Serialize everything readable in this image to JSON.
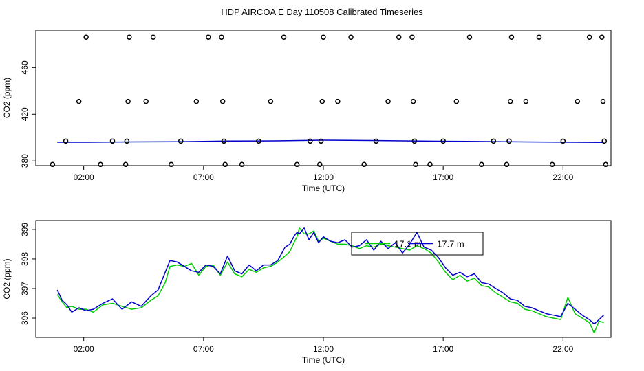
{
  "figure": {
    "title": "HDP AIRCOA E  Day 110508  Calibrated Timeseries"
  },
  "chart_data": [
    {
      "type": "scatter",
      "xlabel": "Time (UTC)",
      "ylabel": "CO2 (ppm)",
      "x_ticks": [
        {
          "label": "02:00",
          "value": 2
        },
        {
          "label": "07:00",
          "value": 7
        },
        {
          "label": "12:00",
          "value": 12
        },
        {
          "label": "17:00",
          "value": 17
        },
        {
          "label": "22:00",
          "value": 22
        }
      ],
      "y_ticks": [
        {
          "label": "380",
          "value": 380
        },
        {
          "label": "420",
          "value": 420
        },
        {
          "label": "460",
          "value": 460
        }
      ],
      "xlim": [
        0,
        24
      ],
      "ylim": [
        376,
        492
      ],
      "grid": false,
      "points": {
        "color": "#000000",
        "x": [
          0.7,
          1.25,
          1.8,
          2.1,
          2.7,
          3.2,
          3.75,
          3.8,
          3.85,
          3.9,
          4.6,
          4.9,
          5.65,
          6.05,
          6.7,
          7.2,
          7.75,
          7.8,
          7.85,
          7.9,
          8.6,
          9.3,
          9.8,
          10.35,
          10.9,
          11.45,
          11.85,
          11.9,
          11.95,
          12.0,
          12.6,
          13.15,
          13.7,
          14.2,
          14.7,
          15.15,
          15.7,
          15.75,
          15.8,
          15.85,
          16.45,
          17.0,
          17.55,
          18.1,
          18.6,
          19.1,
          19.65,
          19.75,
          19.8,
          19.85,
          20.45,
          21.0,
          21.55,
          22.0,
          22.6,
          23.1,
          23.62,
          23.67,
          23.72,
          23.78
        ],
        "y": [
          377,
          397,
          431,
          486,
          377,
          397,
          377,
          397,
          431,
          486,
          431,
          486,
          377,
          397,
          431,
          486,
          486,
          431,
          397,
          377,
          377,
          397,
          431,
          486,
          377,
          397,
          377,
          397,
          431,
          486,
          431,
          486,
          377,
          397,
          431,
          486,
          486,
          431,
          397,
          377,
          377,
          397,
          431,
          486,
          377,
          397,
          377,
          397,
          431,
          486,
          431,
          486,
          377,
          397,
          431,
          486,
          486,
          431,
          397,
          377
        ]
      },
      "series": [
        {
          "color": "#0000cc",
          "x": [
            0.9,
            2,
            4,
            6,
            8,
            10,
            12,
            14,
            16,
            18,
            20,
            22,
            23.7
          ],
          "y": [
            396.0,
            396.0,
            396.3,
            396.5,
            397.0,
            397.2,
            397.8,
            397.5,
            397.0,
            396.8,
            396.4,
            396.1,
            395.9
          ]
        }
      ]
    },
    {
      "type": "line",
      "xlabel": "Time (UTC)",
      "ylabel": "CO2 (ppm)",
      "x_ticks": [
        {
          "label": "02:00",
          "value": 2
        },
        {
          "label": "07:00",
          "value": 7
        },
        {
          "label": "12:00",
          "value": 12
        },
        {
          "label": "17:00",
          "value": 17
        },
        {
          "label": "22:00",
          "value": 22
        }
      ],
      "y_ticks": [
        {
          "label": "396",
          "value": 396
        },
        {
          "label": "397",
          "value": 397
        },
        {
          "label": "398",
          "value": 398
        },
        {
          "label": "399",
          "value": 399
        }
      ],
      "xlim": [
        0,
        24
      ],
      "ylim": [
        395.35,
        399.3
      ],
      "grid": false,
      "legend": {
        "placement": "top-center",
        "entries": [
          {
            "label": "17.1 m",
            "color": "#00cc00"
          },
          {
            "label": "17.7 m",
            "color": "#0000cc"
          }
        ]
      },
      "series": [
        {
          "name": "17.1 m",
          "color": "#00cc00",
          "x": [
            0.9,
            1.1,
            1.3,
            1.5,
            1.8,
            2.1,
            2.4,
            2.8,
            3.2,
            3.6,
            4.0,
            4.4,
            4.8,
            5.1,
            5.4,
            5.6,
            5.9,
            6.2,
            6.5,
            6.8,
            7.1,
            7.4,
            7.7,
            8.0,
            8.3,
            8.6,
            8.9,
            9.2,
            9.5,
            9.8,
            10.1,
            10.4,
            10.6,
            10.8,
            10.9,
            11.0,
            11.2,
            11.4,
            11.6,
            11.8,
            12.0,
            12.3,
            12.6,
            12.9,
            13.2,
            13.5,
            13.8,
            14.1,
            14.4,
            14.7,
            15.0,
            15.3,
            15.6,
            15.9,
            16.2,
            16.5,
            16.8,
            17.1,
            17.4,
            17.7,
            18.0,
            18.3,
            18.6,
            18.9,
            19.2,
            19.5,
            19.8,
            20.1,
            20.4,
            20.7,
            21.0,
            21.3,
            21.6,
            21.9,
            22.2,
            22.5,
            22.8,
            23.1,
            23.3,
            23.5,
            23.7
          ],
          "y": [
            396.8,
            396.55,
            396.35,
            396.4,
            396.3,
            396.3,
            396.2,
            396.45,
            396.5,
            396.4,
            396.3,
            396.35,
            396.6,
            396.75,
            397.2,
            397.75,
            397.8,
            397.75,
            397.85,
            397.45,
            397.75,
            397.8,
            397.45,
            397.9,
            397.5,
            397.4,
            397.65,
            397.55,
            397.7,
            397.75,
            397.9,
            398.1,
            398.25,
            398.6,
            398.75,
            399.05,
            398.85,
            398.85,
            398.95,
            398.6,
            398.7,
            398.6,
            398.5,
            398.5,
            398.45,
            398.35,
            398.45,
            398.4,
            398.5,
            398.45,
            398.4,
            398.35,
            398.3,
            398.45,
            398.35,
            398.2,
            397.9,
            397.55,
            397.3,
            397.45,
            397.25,
            397.35,
            397.1,
            397.05,
            396.85,
            396.7,
            396.55,
            396.5,
            396.3,
            396.25,
            396.15,
            396.05,
            396.0,
            395.95,
            396.7,
            396.15,
            396.0,
            395.85,
            395.5,
            395.9,
            395.85
          ]
        },
        {
          "name": "17.7 m",
          "color": "#0000cc",
          "x": [
            0.9,
            1.1,
            1.3,
            1.5,
            1.8,
            2.1,
            2.4,
            2.8,
            3.2,
            3.6,
            4.0,
            4.4,
            4.8,
            5.1,
            5.4,
            5.6,
            5.9,
            6.2,
            6.5,
            6.8,
            7.1,
            7.4,
            7.7,
            8.0,
            8.3,
            8.6,
            8.9,
            9.2,
            9.5,
            9.8,
            10.1,
            10.4,
            10.6,
            10.8,
            10.9,
            11.0,
            11.2,
            11.4,
            11.6,
            11.8,
            12.0,
            12.3,
            12.6,
            12.9,
            13.2,
            13.5,
            13.8,
            14.1,
            14.4,
            14.7,
            15.0,
            15.3,
            15.6,
            15.9,
            16.2,
            16.5,
            16.8,
            17.1,
            17.4,
            17.7,
            18.0,
            18.3,
            18.6,
            18.9,
            19.2,
            19.5,
            19.8,
            20.1,
            20.4,
            20.7,
            21.0,
            21.3,
            21.6,
            21.9,
            22.2,
            22.5,
            22.8,
            23.1,
            23.3,
            23.5,
            23.7
          ],
          "y": [
            396.95,
            396.6,
            396.45,
            396.2,
            396.35,
            396.25,
            396.3,
            396.5,
            396.65,
            396.3,
            396.55,
            396.4,
            396.75,
            396.95,
            397.55,
            397.95,
            397.9,
            397.75,
            397.6,
            397.55,
            397.8,
            397.75,
            397.5,
            398.1,
            397.6,
            397.5,
            397.8,
            397.6,
            397.8,
            397.8,
            397.95,
            398.4,
            398.5,
            398.8,
            398.9,
            398.85,
            399.05,
            398.65,
            398.9,
            398.55,
            398.75,
            398.6,
            398.55,
            398.65,
            398.4,
            398.45,
            398.65,
            398.3,
            398.6,
            398.35,
            398.55,
            398.2,
            398.5,
            398.9,
            398.4,
            398.3,
            398.05,
            397.7,
            397.45,
            397.55,
            397.4,
            397.5,
            397.2,
            397.15,
            397.0,
            396.85,
            396.65,
            396.6,
            396.4,
            396.35,
            396.25,
            396.15,
            396.1,
            396.05,
            396.5,
            396.3,
            396.1,
            395.95,
            395.8,
            395.95,
            396.1
          ]
        }
      ]
    }
  ]
}
